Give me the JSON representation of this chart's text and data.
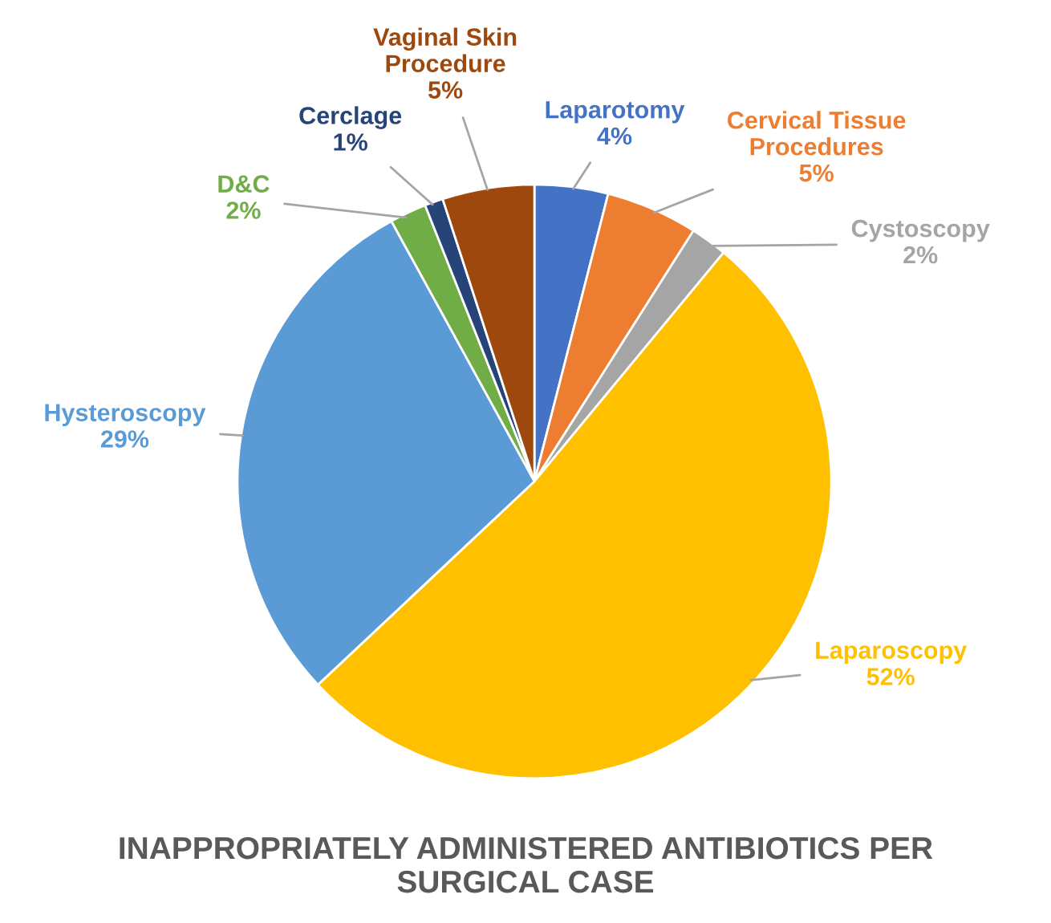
{
  "chart_data": {
    "type": "pie",
    "title": "INAPPROPRIATELY ADMINISTERED ANTIBIOTICS PER\nSURGICAL CASE",
    "categories": [
      "Laparotomy",
      "Cervical Tissue\nProcedures",
      "Cystoscopy",
      "Laparoscopy",
      "Hysteroscopy",
      "D&C",
      "Cerclage",
      "Vaginal Skin\nProcedure"
    ],
    "values": [
      4,
      5,
      2,
      52,
      29,
      2,
      1,
      5
    ],
    "value_labels": [
      "4%",
      "5%",
      "2%",
      "52%",
      "29%",
      "2%",
      "1%",
      "5%"
    ],
    "colors": [
      "#4472c4",
      "#ed7d31",
      "#a5a5a5",
      "#ffc000",
      "#5b9bd5",
      "#70ad47",
      "#264478",
      "#9e480e"
    ],
    "legend": false
  }
}
